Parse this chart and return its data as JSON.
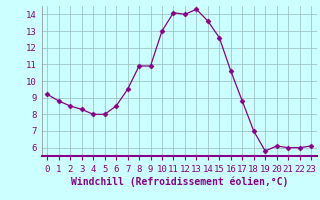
{
  "x": [
    0,
    1,
    2,
    3,
    4,
    5,
    6,
    7,
    8,
    9,
    10,
    11,
    12,
    13,
    14,
    15,
    16,
    17,
    18,
    19,
    20,
    21,
    22,
    23
  ],
  "y": [
    9.2,
    8.8,
    8.5,
    8.3,
    8.0,
    8.0,
    8.5,
    9.5,
    10.9,
    10.9,
    13.0,
    14.1,
    14.0,
    14.3,
    13.6,
    12.6,
    10.6,
    8.8,
    7.0,
    5.8,
    6.1,
    6.0,
    6.0,
    6.1
  ],
  "line_color": "#880088",
  "marker": "D",
  "marker_size": 2.5,
  "bg_color": "#ccffff",
  "grid_color": "#99bbbb",
  "xlabel": "Windchill (Refroidissement éolien,°C)",
  "xlim": [
    -0.5,
    23.5
  ],
  "ylim": [
    5.5,
    14.5
  ],
  "yticks": [
    6,
    7,
    8,
    9,
    10,
    11,
    12,
    13,
    14
  ],
  "xticks": [
    0,
    1,
    2,
    3,
    4,
    5,
    6,
    7,
    8,
    9,
    10,
    11,
    12,
    13,
    14,
    15,
    16,
    17,
    18,
    19,
    20,
    21,
    22,
    23
  ],
  "tick_fontsize": 6.5,
  "xlabel_fontsize": 7,
  "label_color": "#880088",
  "spine_color": "#888888",
  "bottom_spine_color": "#880088"
}
